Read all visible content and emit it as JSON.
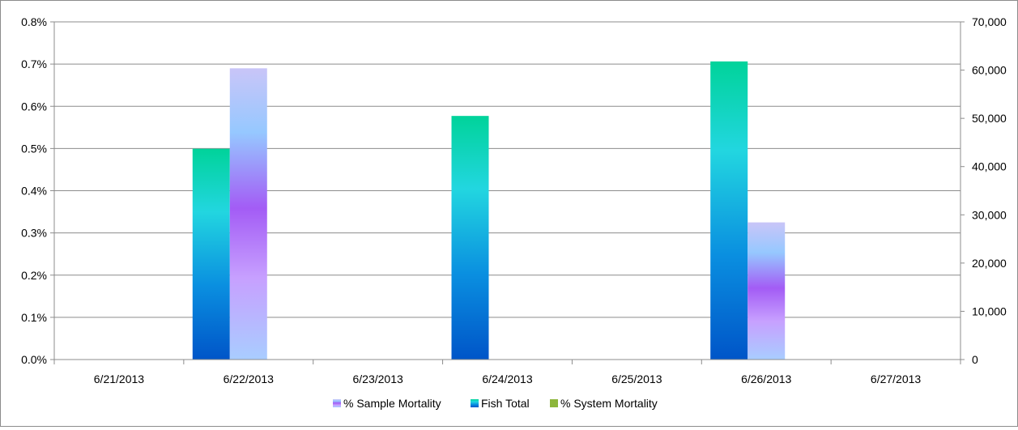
{
  "chart_data": {
    "type": "bar",
    "categories": [
      "6/21/2013",
      "6/22/2013",
      "6/23/2013",
      "6/24/2013",
      "6/25/2013",
      "6/26/2013",
      "6/27/2013"
    ],
    "y_left": {
      "min": 0,
      "max": 0.8,
      "step": 0.1,
      "format": "percent",
      "ticks": [
        "0.0%",
        "0.1%",
        "0.2%",
        "0.3%",
        "0.4%",
        "0.5%",
        "0.6%",
        "0.7%",
        "0.8%"
      ]
    },
    "y_right": {
      "min": 0,
      "max": 70000,
      "step": 10000,
      "format": "number",
      "ticks": [
        "0",
        "10,000",
        "20,000",
        "30,000",
        "40,000",
        "50,000",
        "60,000",
        "70,000"
      ]
    },
    "series": [
      {
        "name": "% Sample Mortality",
        "axis": "left",
        "values": [
          null,
          0.69,
          null,
          null,
          null,
          0.325,
          null
        ]
      },
      {
        "name": "Fish Total",
        "axis": "right",
        "values": [
          null,
          43700,
          null,
          50500,
          null,
          61800,
          null
        ]
      },
      {
        "name": "% System Mortality",
        "axis": "left",
        "values": [
          null,
          null,
          null,
          null,
          null,
          null,
          null
        ]
      }
    ],
    "grid": true,
    "legend_position": "bottom",
    "colors": {
      "fish_total": [
        "#00d39a",
        "#22d6e0",
        "#0a8fe0",
        "#0055c8"
      ],
      "sample_mortality": [
        "#c9c5f8",
        "#96c8ff",
        "#a35cf5",
        "#c7a0ff",
        "#a9cdff"
      ],
      "system_mortality": "#8db63c",
      "gridline": "#8c8c8c",
      "axis": "#8c8c8c"
    }
  }
}
